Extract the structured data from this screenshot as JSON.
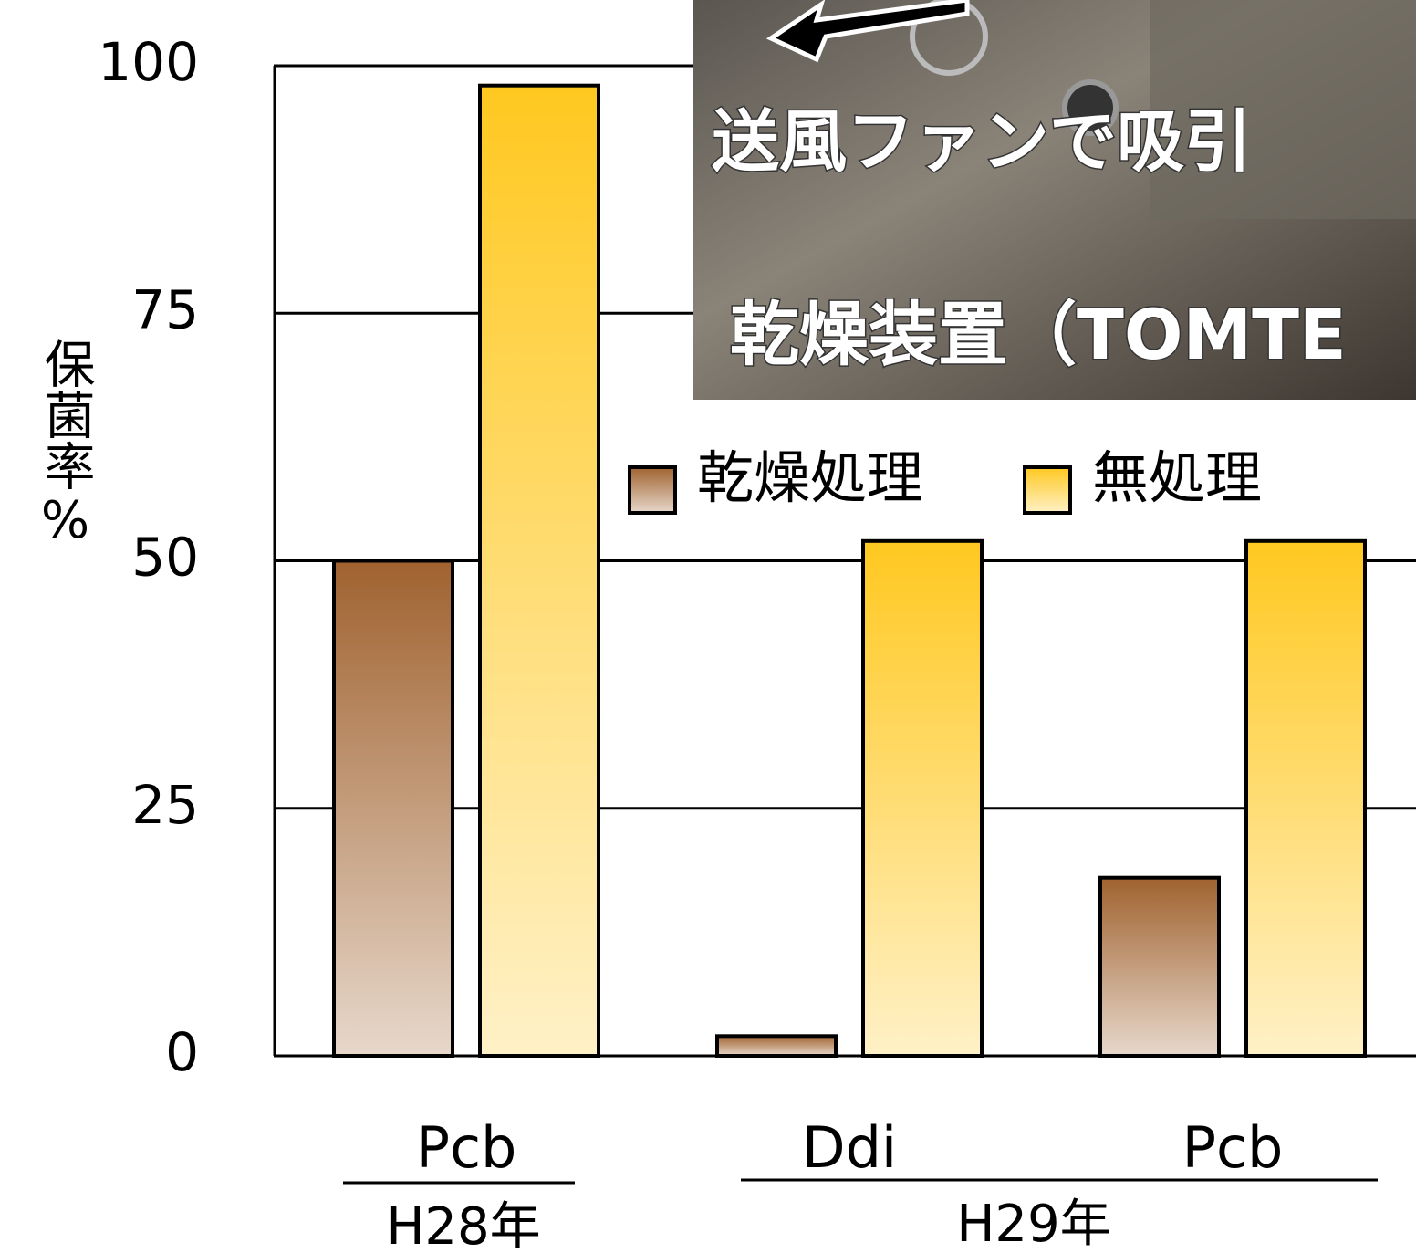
{
  "chart_data": {
    "type": "bar",
    "y_label": "保菌率%",
    "categories": [
      "Pcb",
      "Ddi",
      "Pcb"
    ],
    "group_labels": [
      "H28年",
      "H29年"
    ],
    "series": [
      {
        "name": "乾燥処理",
        "color": "#a0622f",
        "values": [
          50,
          2,
          18
        ]
      },
      {
        "name": "無処理",
        "color": "#ffc820",
        "values": [
          98,
          52,
          52
        ]
      }
    ],
    "ylim": [
      0,
      100
    ],
    "yticks": [
      0,
      25,
      50,
      75,
      100
    ],
    "grid": true,
    "annotations": [
      "送風ファンで吸引",
      "乾燥装置（TOMTE"
    ]
  }
}
